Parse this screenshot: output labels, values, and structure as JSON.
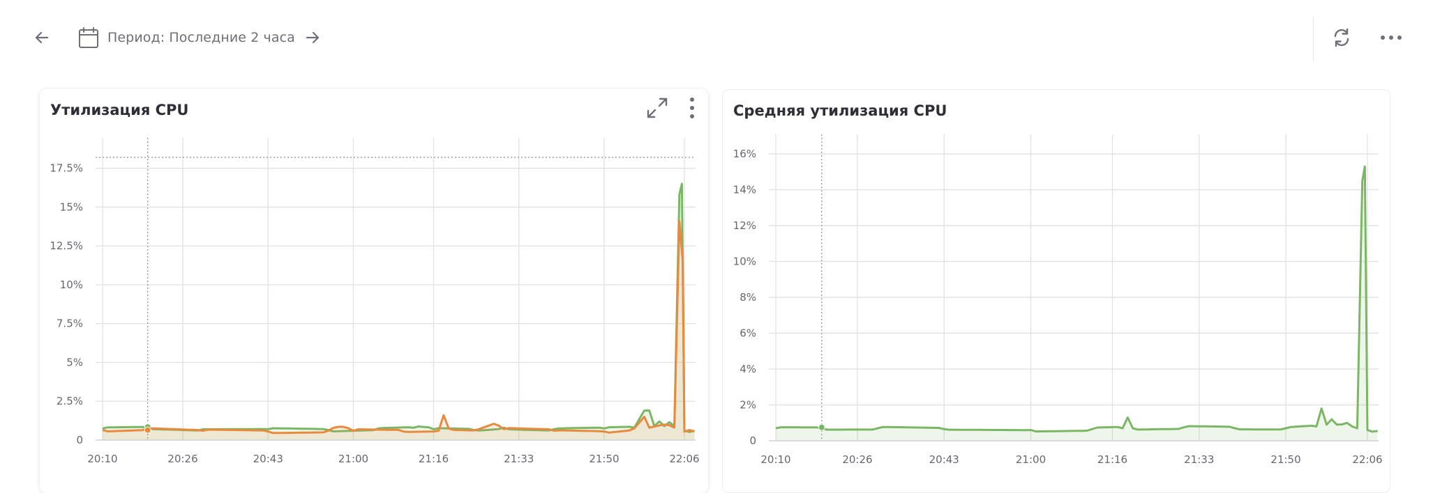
{
  "toolbar": {
    "back_icon": "arrow-left-icon",
    "calendar_icon": "calendar-icon",
    "period_label": "Период: Последние 2 часа",
    "forward_icon": "arrow-right-icon",
    "refresh_icon": "refresh-icon",
    "more_icon": "more-horizontal-icon"
  },
  "colors": {
    "green": "#7ab663",
    "orange": "#e8893d",
    "grid": "#e3e3e3",
    "text": "#666670"
  },
  "charts": [
    {
      "title": "Утилизация CPU",
      "tools": [
        "expand-icon",
        "more-vertical-icon"
      ]
    },
    {
      "title": "Средняя утилизация CPU",
      "tools": []
    }
  ],
  "chart_data": [
    {
      "type": "line",
      "title": "Утилизация CPU",
      "x_ticks": [
        "20:10",
        "20:26",
        "20:43",
        "21:00",
        "21:16",
        "21:33",
        "21:50",
        "22:06"
      ],
      "y_ticks": [
        "0",
        "2.5%",
        "5%",
        "7.5%",
        "10%",
        "12.5%",
        "15%",
        "17.5%"
      ],
      "ylim": [
        0,
        18.2
      ],
      "grid": true,
      "threshold_line": 18.2,
      "cursor_time": "20:19",
      "series": [
        {
          "color": "#7ab663",
          "fill": true,
          "points": [
            [
              "20:10",
              0.75
            ],
            [
              "20:19",
              0.8
            ],
            [
              "20:30",
              0.7
            ],
            [
              "20:43",
              0.7
            ],
            [
              "20:55",
              0.65
            ],
            [
              "21:05",
              0.75
            ],
            [
              "21:12",
              0.8
            ],
            [
              "21:16",
              0.7
            ],
            [
              "21:24",
              0.65
            ],
            [
              "21:30",
              0.8
            ],
            [
              "21:40",
              0.7
            ],
            [
              "21:50",
              0.75
            ],
            [
              "21:56",
              0.8
            ],
            [
              "21:58",
              1.9
            ],
            [
              "21:59",
              1.9
            ],
            [
              "22:00",
              0.9
            ],
            [
              "22:01",
              1.2
            ],
            [
              "22:02",
              0.9
            ],
            [
              "22:03",
              1.15
            ],
            [
              "22:04",
              0.9
            ],
            [
              "22:05",
              15.8
            ],
            [
              "22:05:30",
              16.5
            ],
            [
              "22:06",
              0.6
            ],
            [
              "22:08",
              0.6
            ]
          ]
        },
        {
          "color": "#e8893d",
          "fill": true,
          "points": [
            [
              "20:10",
              0.65
            ],
            [
              "20:19",
              0.75
            ],
            [
              "20:30",
              0.6
            ],
            [
              "20:43",
              0.55
            ],
            [
              "20:55",
              0.6
            ],
            [
              "20:57",
              0.85
            ],
            [
              "21:00",
              0.6
            ],
            [
              "21:10",
              0.55
            ],
            [
              "21:17",
              0.6
            ],
            [
              "21:18",
              1.6
            ],
            [
              "21:19",
              0.75
            ],
            [
              "21:25",
              0.7
            ],
            [
              "21:28",
              1.05
            ],
            [
              "21:30",
              0.7
            ],
            [
              "21:40",
              0.6
            ],
            [
              "21:50",
              0.55
            ],
            [
              "21:56",
              0.75
            ],
            [
              "21:58",
              1.5
            ],
            [
              "21:59",
              0.8
            ],
            [
              "22:02",
              1.0
            ],
            [
              "22:04",
              0.8
            ],
            [
              "22:05",
              14.1
            ],
            [
              "22:05:40",
              11.5
            ],
            [
              "22:06",
              0.55
            ],
            [
              "22:08",
              0.55
            ]
          ]
        }
      ]
    },
    {
      "type": "line",
      "title": "Средняя утилизация CPU",
      "x_ticks": [
        "20:10",
        "20:26",
        "20:43",
        "21:00",
        "21:16",
        "21:33",
        "21:50",
        "22:06"
      ],
      "y_ticks": [
        "0",
        "2%",
        "4%",
        "6%",
        "8%",
        "10%",
        "12%",
        "14%",
        "16%"
      ],
      "ylim": [
        0,
        16
      ],
      "grid": true,
      "cursor_time": "20:19",
      "series": [
        {
          "color": "#7ab663",
          "fill": true,
          "points": [
            [
              "20:10",
              0.7
            ],
            [
              "20:19",
              0.7
            ],
            [
              "20:30",
              0.7
            ],
            [
              "20:43",
              0.65
            ],
            [
              "21:00",
              0.6
            ],
            [
              "21:12",
              0.65
            ],
            [
              "21:18",
              0.7
            ],
            [
              "21:19",
              1.3
            ],
            [
              "21:20",
              0.7
            ],
            [
              "21:30",
              0.75
            ],
            [
              "21:40",
              0.7
            ],
            [
              "21:50",
              0.7
            ],
            [
              "21:56",
              0.8
            ],
            [
              "21:57",
              1.8
            ],
            [
              "21:58",
              0.9
            ],
            [
              "21:59",
              1.2
            ],
            [
              "22:00",
              0.9
            ],
            [
              "22:02",
              1.0
            ],
            [
              "22:03",
              0.8
            ],
            [
              "22:04",
              0.7
            ],
            [
              "22:05",
              14.5
            ],
            [
              "22:05:30",
              15.3
            ],
            [
              "22:06",
              0.6
            ],
            [
              "22:08",
              0.55
            ]
          ]
        }
      ]
    }
  ]
}
